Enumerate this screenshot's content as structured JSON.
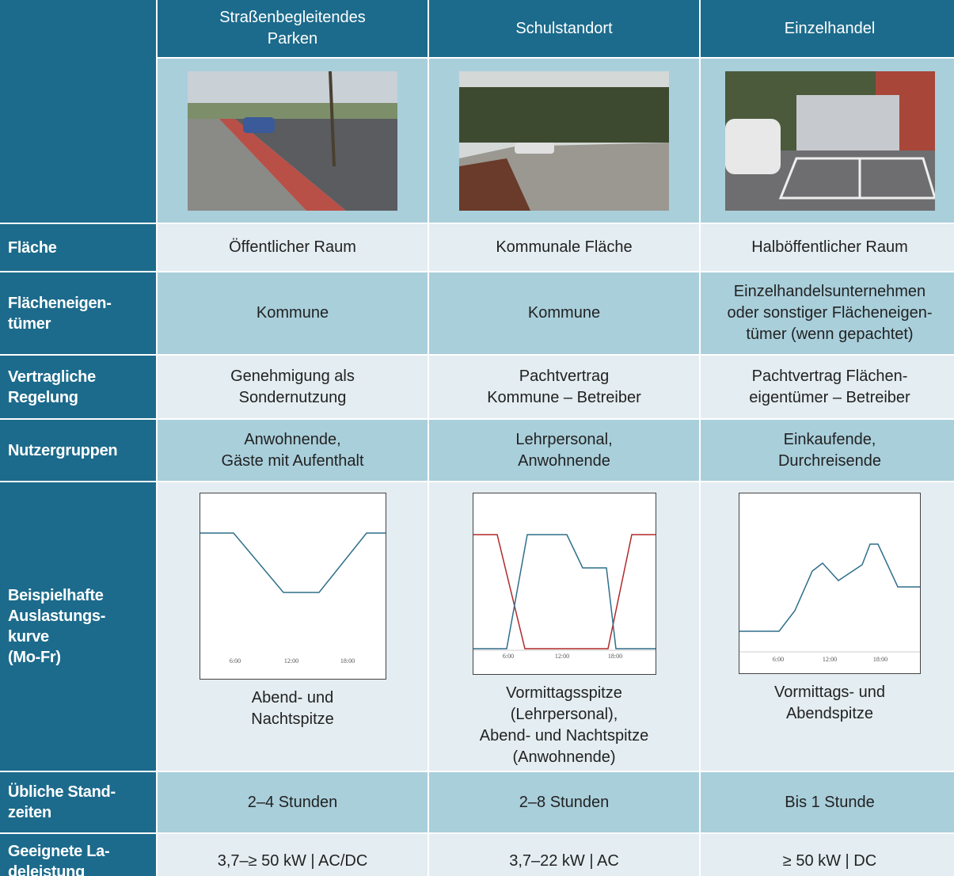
{
  "header": {
    "columns": [
      "Straßenbegleitendes\nParken",
      "Schulstandort",
      "Einzelhandel"
    ]
  },
  "rows": [
    {
      "label": "Fläche",
      "cells": [
        "Öffentlicher Raum",
        "Kommunale Fläche",
        "Halböffentlicher Raum"
      ]
    },
    {
      "label": "Flächeneigen-\ntümer",
      "cells": [
        "Kommune",
        "Kommune",
        "Einzelhandelsunternehmen\noder sonstiger Flächeneigen-\ntümer (wenn gepachtet)"
      ]
    },
    {
      "label": "Vertragliche\nRegelung",
      "cells": [
        "Genehmigung als\nSondernutzung",
        "Pachtvertrag\nKommune – Betreiber",
        "Pachtvertrag Flächen-\neigentümer – Betreiber"
      ]
    },
    {
      "label": "Nutzergruppen",
      "cells": [
        "Anwohnende,\nGäste mit Aufenthalt",
        "Lehrpersonal,\nAnwohnende",
        "Einkaufende,\nDurchreisende"
      ]
    },
    {
      "label": "Beispielhafte\nAuslastungs-\nkurve\n(Mo-Fr)",
      "cells": [
        "Abend- und\nNachtspitze",
        "Vormittagsspitze\n(Lehrpersonal),\nAbend- und Nachtspitze\n(Anwohnende)",
        "Vormittags- und\nAbendspitze"
      ]
    },
    {
      "label": "Übliche Stand-\nzeiten",
      "cells": [
        "2–4 Stunden",
        "2–8 Stunden",
        "Bis 1 Stunde"
      ]
    },
    {
      "label": "Geeignete La-\ndeleistung",
      "cells": [
        "3,7–≥ 50 kW | AC/DC",
        "3,7–22 kW | AC",
        "≥ 50 kW | DC"
      ]
    }
  ],
  "chart_ticks": [
    "6:00",
    "12:00",
    "18:00"
  ]
}
